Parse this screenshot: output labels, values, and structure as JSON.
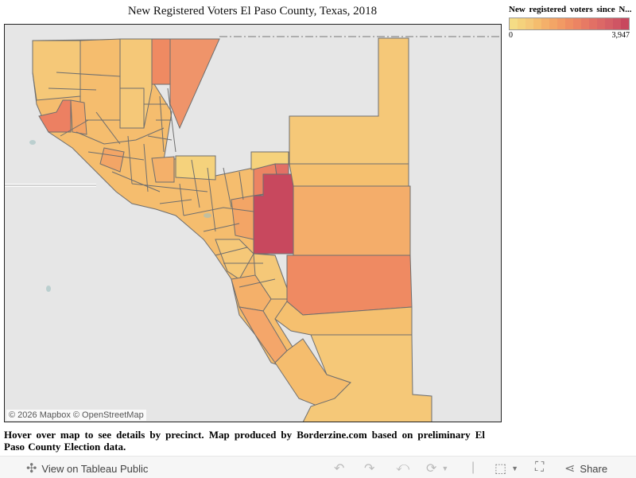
{
  "title": "New Registered Voters El Paso County, Texas, 2018",
  "legend": {
    "title": "New registered voters since N...",
    "min_label": "0",
    "max_label": "3,947",
    "colors": [
      "#f5dc85",
      "#f5d27c",
      "#f5c878",
      "#f5bd6e",
      "#f4b06a",
      "#f3a566",
      "#f29a64",
      "#ef8e62",
      "#ec8463",
      "#e77a64",
      "#e27065",
      "#dc6866",
      "#d55f66",
      "#cf5564",
      "#c8485e"
    ]
  },
  "map": {
    "attribution": "© 2026 Mapbox  © OpenStreetMap",
    "background": "#e6e6e6",
    "border_color": "#6e6e6e"
  },
  "note": "Hover over map to see details by precinct. Map produced by Borderzine.com based on preliminary El Paso County Election data.",
  "toolbar": {
    "view_label": "View on Tableau Public",
    "share_label": "Share",
    "icons": [
      "tableau-icon",
      "undo-icon",
      "redo-icon",
      "revert-icon",
      "refresh-icon",
      "download-icon",
      "fullscreen-icon",
      "share-icon"
    ]
  }
}
